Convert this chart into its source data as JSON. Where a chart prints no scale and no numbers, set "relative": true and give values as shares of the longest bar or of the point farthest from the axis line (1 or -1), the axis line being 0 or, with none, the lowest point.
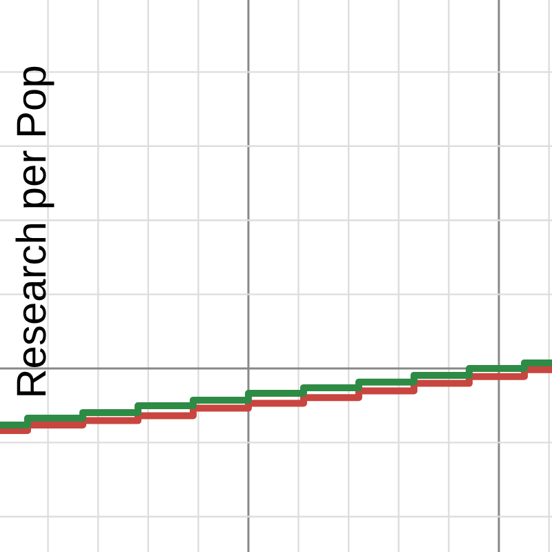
{
  "chart_data": {
    "type": "step",
    "ylabel": "Research per Pop",
    "relative": true,
    "grid": true,
    "categories": [
      null,
      null,
      null,
      null,
      null,
      null,
      null,
      null,
      null,
      null,
      null
    ],
    "series": [
      {
        "color": "#2e8b45",
        "values": [
          -0.91,
          -0.8,
          -0.71,
          -0.6,
          -0.51,
          -0.4,
          -0.31,
          -0.22,
          -0.11,
          0,
          0.09
        ]
      },
      {
        "color": "#c9453f",
        "values": [
          -1,
          -0.91,
          -0.84,
          -0.76,
          -0.64,
          -0.56,
          -0.47,
          -0.36,
          -0.24,
          -0.13,
          -0.02
        ]
      }
    ]
  }
}
